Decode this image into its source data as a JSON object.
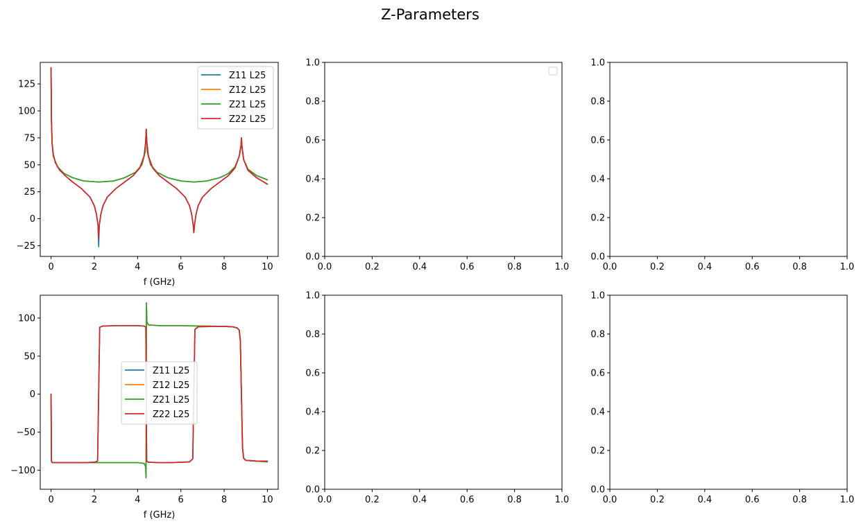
{
  "figure": {
    "title": "Z-Parameters"
  },
  "chart_data": [
    {
      "type": "line",
      "title": "",
      "xlabel": "f (GHz)",
      "ylabel": "",
      "xlim": [
        -0.5,
        10.5
      ],
      "ylim": [
        -35,
        145
      ],
      "xticks": [
        0,
        2,
        4,
        6,
        8,
        10
      ],
      "yticks": [
        -25,
        0,
        25,
        50,
        75,
        100,
        125
      ],
      "legend": {
        "position": "top-right"
      },
      "series": [
        {
          "name": "Z11 L25",
          "color": "#1f77b4",
          "x": [
            0,
            0.02,
            0.05,
            0.1,
            0.2,
            0.4,
            0.7,
            1.0,
            1.4,
            1.8,
            2.0,
            2.1,
            2.17,
            2.2,
            2.23,
            2.3,
            2.4,
            2.6,
            3.0,
            3.4,
            3.8,
            4.1,
            4.3,
            4.38,
            4.4,
            4.42,
            4.5,
            4.7,
            5.0,
            5.4,
            5.8,
            6.2,
            6.4,
            6.5,
            6.57,
            6.6,
            6.63,
            6.7,
            6.8,
            7.0,
            7.4,
            7.8,
            8.2,
            8.5,
            8.7,
            8.78,
            8.8,
            8.82,
            8.9,
            9.1,
            9.5,
            10.0
          ],
          "y": [
            140,
            90,
            70,
            60,
            52,
            45,
            39,
            34,
            28,
            20,
            12,
            4,
            -6,
            -26,
            -6,
            4,
            12,
            20,
            28,
            34,
            40,
            47,
            58,
            72,
            83,
            72,
            58,
            47,
            40,
            34,
            28,
            20,
            12,
            4,
            -6,
            -13,
            -6,
            4,
            12,
            20,
            28,
            34,
            40,
            47,
            58,
            68,
            75,
            68,
            55,
            45,
            38,
            32
          ]
        },
        {
          "name": "Z12 L25",
          "color": "#ff7f0e",
          "x": [
            0,
            0.02,
            0.05,
            0.1,
            0.3,
            0.6,
            1.0,
            1.5,
            2.2,
            2.9,
            3.4,
            3.9,
            4.2,
            4.35,
            4.4,
            4.45,
            4.6,
            4.9,
            5.4,
            6.0,
            6.6,
            7.2,
            7.8,
            8.2,
            8.5,
            8.7,
            8.78,
            8.8,
            8.82,
            8.9,
            9.1,
            9.5,
            10.0
          ],
          "y": [
            140,
            90,
            70,
            58,
            48,
            42,
            38,
            35,
            34,
            35,
            38,
            43,
            50,
            62,
            83,
            62,
            50,
            43,
            38,
            35,
            34,
            35,
            38,
            42,
            48,
            58,
            68,
            75,
            68,
            55,
            46,
            40,
            36
          ]
        },
        {
          "name": "Z21 L25",
          "color": "#2ca02c",
          "x": [
            0,
            0.02,
            0.05,
            0.1,
            0.3,
            0.6,
            1.0,
            1.5,
            2.2,
            2.9,
            3.4,
            3.9,
            4.2,
            4.35,
            4.4,
            4.45,
            4.6,
            4.9,
            5.4,
            6.0,
            6.6,
            7.2,
            7.8,
            8.2,
            8.5,
            8.7,
            8.78,
            8.8,
            8.82,
            8.9,
            9.1,
            9.5,
            10.0
          ],
          "y": [
            140,
            90,
            70,
            58,
            48,
            42,
            38,
            35,
            34,
            35,
            38,
            43,
            50,
            62,
            83,
            62,
            50,
            43,
            38,
            35,
            34,
            35,
            38,
            42,
            48,
            58,
            68,
            75,
            68,
            55,
            46,
            40,
            36
          ]
        },
        {
          "name": "Z22 L25",
          "color": "#d62728",
          "x": [
            0,
            0.02,
            0.05,
            0.1,
            0.2,
            0.4,
            0.7,
            1.0,
            1.4,
            1.8,
            2.0,
            2.1,
            2.17,
            2.2,
            2.23,
            2.3,
            2.4,
            2.6,
            3.0,
            3.4,
            3.8,
            4.1,
            4.3,
            4.38,
            4.4,
            4.42,
            4.5,
            4.7,
            5.0,
            5.4,
            5.8,
            6.2,
            6.4,
            6.5,
            6.57,
            6.6,
            6.63,
            6.7,
            6.8,
            7.0,
            7.4,
            7.8,
            8.2,
            8.5,
            8.7,
            8.78,
            8.8,
            8.82,
            8.9,
            9.1,
            9.5,
            10.0
          ],
          "y": [
            140,
            90,
            70,
            60,
            52,
            45,
            39,
            34,
            28,
            20,
            12,
            4,
            -6,
            -18,
            -6,
            4,
            12,
            20,
            28,
            34,
            40,
            47,
            58,
            72,
            83,
            72,
            58,
            47,
            40,
            34,
            28,
            20,
            12,
            4,
            -6,
            -13,
            -6,
            4,
            12,
            20,
            28,
            34,
            40,
            47,
            58,
            68,
            75,
            68,
            55,
            45,
            38,
            32
          ]
        }
      ]
    },
    {
      "type": "line",
      "title": "",
      "xlabel": "",
      "ylabel": "",
      "xlim": [
        0,
        1
      ],
      "ylim": [
        0,
        1
      ],
      "xticks": [
        0.0,
        0.2,
        0.4,
        0.6,
        0.8,
        1.0
      ],
      "yticks": [
        0.0,
        0.2,
        0.4,
        0.6,
        0.8,
        1.0
      ],
      "legend": {
        "position": "top-right",
        "empty": true
      },
      "series": []
    },
    {
      "type": "line",
      "title": "",
      "xlabel": "",
      "ylabel": "",
      "xlim": [
        0,
        1
      ],
      "ylim": [
        0,
        1
      ],
      "xticks": [
        0.0,
        0.2,
        0.4,
        0.6,
        0.8,
        1.0
      ],
      "yticks": [
        0.0,
        0.2,
        0.4,
        0.6,
        0.8,
        1.0
      ],
      "series": []
    },
    {
      "type": "line",
      "title": "",
      "xlabel": "f (GHz)",
      "ylabel": "",
      "xlim": [
        -0.5,
        10.5
      ],
      "ylim": [
        -125,
        130
      ],
      "xticks": [
        0,
        2,
        4,
        6,
        8,
        10
      ],
      "yticks": [
        -100,
        -50,
        0,
        50,
        100
      ],
      "legend": {
        "position": "center"
      },
      "series": [
        {
          "name": "Z11 L25",
          "color": "#1f77b4",
          "x": [
            0,
            0.02,
            0.05,
            0.5,
            1.0,
            1.5,
            2.0,
            2.15,
            2.2,
            2.25,
            2.4,
            3.0,
            3.5,
            4.0,
            4.3,
            4.38,
            4.4,
            4.42,
            4.5,
            5.0,
            5.5,
            6.0,
            6.4,
            6.55,
            6.6,
            6.65,
            6.8,
            7.5,
            8.0,
            8.4,
            8.6,
            8.7,
            8.75,
            8.8,
            8.85,
            8.9,
            9.0,
            9.5,
            10.0
          ],
          "y": [
            0,
            -88,
            -90,
            -90,
            -90,
            -90,
            -89.5,
            -88,
            0,
            88,
            89.5,
            90,
            90,
            90,
            89.5,
            88,
            0,
            -88,
            -89.5,
            -90,
            -90,
            -89.5,
            -89,
            -85,
            0,
            85,
            88.5,
            89,
            89,
            88.5,
            87,
            84,
            70,
            0,
            -70,
            -84,
            -87,
            -88,
            -88
          ]
        },
        {
          "name": "Z12 L25",
          "color": "#ff7f0e",
          "x": [
            0,
            0.02,
            0.05,
            0.5,
            1.0,
            2.0,
            3.0,
            4.0,
            4.3,
            4.37,
            4.39,
            4.41,
            4.43,
            4.5,
            5.0,
            6.0,
            7.0,
            8.0,
            8.4,
            8.6,
            8.7,
            8.75,
            8.8,
            8.85,
            8.9,
            9.0,
            9.5,
            10.0
          ],
          "y": [
            0,
            -88,
            -90,
            -90,
            -90,
            -90,
            -90,
            -90,
            -91,
            -95,
            -110,
            120,
            95,
            91,
            90,
            90,
            89.5,
            89,
            88.5,
            87,
            84,
            70,
            0,
            -70,
            -84,
            -87,
            -88,
            -89
          ]
        },
        {
          "name": "Z21 L25",
          "color": "#2ca02c",
          "x": [
            0,
            0.02,
            0.05,
            0.5,
            1.0,
            2.0,
            3.0,
            4.0,
            4.3,
            4.37,
            4.39,
            4.41,
            4.43,
            4.5,
            5.0,
            6.0,
            7.0,
            8.0,
            8.4,
            8.6,
            8.7,
            8.75,
            8.8,
            8.85,
            8.9,
            9.0,
            9.5,
            10.0
          ],
          "y": [
            0,
            -88,
            -90,
            -90,
            -90,
            -90,
            -90,
            -90,
            -91,
            -95,
            -110,
            120,
            95,
            91,
            90,
            90,
            89.5,
            89,
            88.5,
            87,
            84,
            70,
            0,
            -70,
            -84,
            -87,
            -88,
            -89
          ]
        },
        {
          "name": "Z22 L25",
          "color": "#d62728",
          "x": [
            0,
            0.02,
            0.05,
            0.5,
            1.0,
            1.5,
            2.0,
            2.15,
            2.2,
            2.25,
            2.4,
            3.0,
            3.5,
            4.0,
            4.3,
            4.38,
            4.4,
            4.42,
            4.5,
            5.0,
            5.5,
            6.0,
            6.4,
            6.55,
            6.6,
            6.65,
            6.8,
            7.5,
            8.0,
            8.4,
            8.6,
            8.7,
            8.75,
            8.8,
            8.85,
            8.9,
            9.0,
            9.5,
            10.0
          ],
          "y": [
            0,
            -88,
            -90,
            -90,
            -90,
            -90,
            -89.5,
            -88,
            0,
            88,
            89.5,
            90,
            90,
            90,
            89.5,
            88,
            0,
            -88,
            -89.5,
            -90,
            -90,
            -89.5,
            -89,
            -85,
            0,
            85,
            88.5,
            89,
            89,
            88.5,
            87,
            84,
            70,
            0,
            -70,
            -84,
            -87,
            -88,
            -88
          ]
        }
      ]
    },
    {
      "type": "line",
      "title": "",
      "xlabel": "",
      "ylabel": "",
      "xlim": [
        0,
        1
      ],
      "ylim": [
        0,
        1
      ],
      "xticks": [
        0.0,
        0.2,
        0.4,
        0.6,
        0.8,
        1.0
      ],
      "yticks": [
        0.0,
        0.2,
        0.4,
        0.6,
        0.8,
        1.0
      ],
      "series": []
    },
    {
      "type": "line",
      "title": "",
      "xlabel": "",
      "ylabel": "",
      "xlim": [
        0,
        1
      ],
      "ylim": [
        0,
        1
      ],
      "xticks": [
        0.0,
        0.2,
        0.4,
        0.6,
        0.8,
        1.0
      ],
      "yticks": [
        0.0,
        0.2,
        0.4,
        0.6,
        0.8,
        1.0
      ],
      "series": []
    }
  ]
}
